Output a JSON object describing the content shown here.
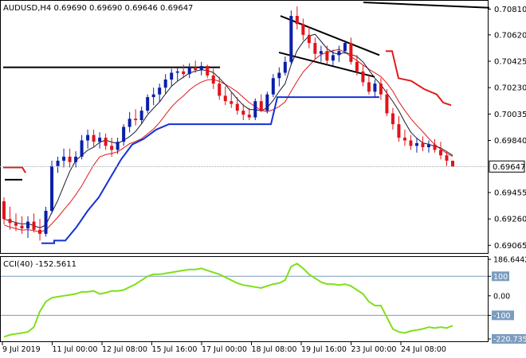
{
  "main_panel": {
    "header": "AUDUSD,H4  0.69690 0.69690 0.69646 0.69647",
    "y_ticks": [
      {
        "label": "0.70810",
        "value": 0.7081
      },
      {
        "label": "0.70620",
        "value": 0.7062
      },
      {
        "label": "0.70425",
        "value": 0.70425
      },
      {
        "label": "0.70230",
        "value": 0.7023
      },
      {
        "label": "0.70035",
        "value": 0.70035
      },
      {
        "label": "0.69840",
        "value": 0.6984
      },
      {
        "label": "0.69455",
        "value": 0.69455
      },
      {
        "label": "0.69260",
        "value": 0.6926
      },
      {
        "label": "0.69065",
        "value": 0.69065
      }
    ],
    "current_price": "0.69647",
    "current_price_value": 0.69647
  },
  "cci_panel": {
    "header": "CCI(40) -152.5611",
    "y_ticks": [
      {
        "label": "186.6442",
        "value": 186.6442
      },
      {
        "label": "100",
        "value": 100,
        "boxed": true
      },
      {
        "label": "0.00",
        "value": 0
      },
      {
        "label": "-100",
        "value": -100,
        "boxed": true
      },
      {
        "label": "-220.735",
        "value": -220.735,
        "boxed": true
      }
    ],
    "levels": [
      100,
      -100
    ]
  },
  "x_axis": {
    "labels": [
      "9 Jul 2019",
      "11 Jul 00:00",
      "12 Jul 08:00",
      "15 Jul 16:00",
      "17 Jul 00:00",
      "18 Jul 08:00",
      "19 Jul 16:00",
      "23 Jul 00:00",
      "24 Jul 08:00"
    ]
  },
  "colors": {
    "bull": "#0a1fa8",
    "bear": "#e0141b",
    "fast_ma": "#1a1a2e",
    "slow_ma": "#e01b1b",
    "blue_level": "#1431d6",
    "red_level": "#e01b1b",
    "cci_line": "#7fe01a",
    "grid_line": "#7a9cc0",
    "axis": "#000000"
  },
  "chart_data": {
    "type": "candlestick",
    "symbol": "AUDUSD",
    "timeframe": "H4",
    "ylim": [
      0.6902,
      0.7086
    ],
    "candles": [
      [
        0.6939,
        0.6942,
        0.6922,
        0.6926
      ],
      [
        0.6926,
        0.6935,
        0.6918,
        0.6923
      ],
      [
        0.6923,
        0.693,
        0.6917,
        0.6921
      ],
      [
        0.6921,
        0.6928,
        0.6915,
        0.6919
      ],
      [
        0.6919,
        0.6928,
        0.6912,
        0.6924
      ],
      [
        0.6924,
        0.693,
        0.6916,
        0.6918
      ],
      [
        0.6918,
        0.6926,
        0.691,
        0.6915
      ],
      [
        0.6915,
        0.6935,
        0.6913,
        0.6932
      ],
      [
        0.6932,
        0.6969,
        0.693,
        0.6965
      ],
      [
        0.6965,
        0.6972,
        0.696,
        0.6969
      ],
      [
        0.6969,
        0.6978,
        0.6964,
        0.6972
      ],
      [
        0.6972,
        0.6978,
        0.6964,
        0.6968
      ],
      [
        0.6968,
        0.6976,
        0.6964,
        0.6972
      ],
      [
        0.6972,
        0.6988,
        0.697,
        0.6984
      ],
      [
        0.6984,
        0.6992,
        0.6978,
        0.6988
      ],
      [
        0.6988,
        0.6992,
        0.6979,
        0.6983
      ],
      [
        0.6983,
        0.699,
        0.6978,
        0.6986
      ],
      [
        0.6986,
        0.6989,
        0.6977,
        0.698
      ],
      [
        0.698,
        0.6986,
        0.6972,
        0.6977
      ],
      [
        0.6977,
        0.6986,
        0.6974,
        0.6983
      ],
      [
        0.6983,
        0.6996,
        0.698,
        0.6994
      ],
      [
        0.6994,
        0.7005,
        0.699,
        0.7
      ],
      [
        0.7,
        0.7007,
        0.6995,
        0.6999
      ],
      [
        0.6999,
        0.7009,
        0.6996,
        0.7006
      ],
      [
        0.7006,
        0.7018,
        0.7004,
        0.7016
      ],
      [
        0.7016,
        0.7023,
        0.701,
        0.7018
      ],
      [
        0.7018,
        0.7026,
        0.7012,
        0.7023
      ],
      [
        0.7023,
        0.7033,
        0.7018,
        0.7029
      ],
      [
        0.7029,
        0.7037,
        0.7024,
        0.7034
      ],
      [
        0.7034,
        0.7038,
        0.7028,
        0.7035
      ],
      [
        0.7035,
        0.704,
        0.703,
        0.7033
      ],
      [
        0.7033,
        0.7041,
        0.703,
        0.7038
      ],
      [
        0.7038,
        0.7043,
        0.7034,
        0.7036
      ],
      [
        0.7036,
        0.7042,
        0.7032,
        0.7039
      ],
      [
        0.7039,
        0.704,
        0.703,
        0.7032
      ],
      [
        0.7032,
        0.7037,
        0.7022,
        0.7026
      ],
      [
        0.7026,
        0.7031,
        0.7014,
        0.7017
      ],
      [
        0.7017,
        0.7024,
        0.701,
        0.7013
      ],
      [
        0.7013,
        0.702,
        0.7008,
        0.7011
      ],
      [
        0.7011,
        0.7016,
        0.7003,
        0.7006
      ],
      [
        0.7006,
        0.7011,
        0.6999,
        0.7003
      ],
      [
        0.7003,
        0.7008,
        0.6999,
        0.7001
      ],
      [
        0.7001,
        0.7015,
        0.6999,
        0.7013
      ],
      [
        0.7013,
        0.7018,
        0.7005,
        0.7006
      ],
      [
        0.7006,
        0.702,
        0.7004,
        0.7018
      ],
      [
        0.7018,
        0.7033,
        0.7016,
        0.703
      ],
      [
        0.703,
        0.7038,
        0.7024,
        0.7034
      ],
      [
        0.7034,
        0.7046,
        0.7032,
        0.7042
      ],
      [
        0.7042,
        0.708,
        0.704,
        0.7076
      ],
      [
        0.7076,
        0.7083,
        0.7066,
        0.707
      ],
      [
        0.707,
        0.7074,
        0.7058,
        0.7062
      ],
      [
        0.7062,
        0.7068,
        0.7052,
        0.7056
      ],
      [
        0.7056,
        0.706,
        0.7044,
        0.7048
      ],
      [
        0.7048,
        0.7054,
        0.7042,
        0.705
      ],
      [
        0.705,
        0.7054,
        0.704,
        0.7043
      ],
      [
        0.7043,
        0.7051,
        0.7039,
        0.7047
      ],
      [
        0.7047,
        0.7054,
        0.7042,
        0.705
      ],
      [
        0.705,
        0.7058,
        0.7048,
        0.7056
      ],
      [
        0.7056,
        0.706,
        0.704,
        0.7042
      ],
      [
        0.7042,
        0.7047,
        0.7032,
        0.7035
      ],
      [
        0.7035,
        0.704,
        0.7024,
        0.7027
      ],
      [
        0.7027,
        0.7032,
        0.7018,
        0.702
      ],
      [
        0.702,
        0.7029,
        0.7016,
        0.7026
      ],
      [
        0.7026,
        0.703,
        0.7014,
        0.7018
      ],
      [
        0.7018,
        0.7022,
        0.7002,
        0.7004
      ],
      [
        0.7004,
        0.7008,
        0.6992,
        0.6996
      ],
      [
        0.6996,
        0.7002,
        0.6983,
        0.6986
      ],
      [
        0.6986,
        0.6992,
        0.698,
        0.6984
      ],
      [
        0.6984,
        0.6988,
        0.6977,
        0.698
      ],
      [
        0.698,
        0.6986,
        0.6975,
        0.6982
      ],
      [
        0.6982,
        0.6987,
        0.6976,
        0.6979
      ],
      [
        0.6979,
        0.6984,
        0.6975,
        0.6981
      ],
      [
        0.6981,
        0.6985,
        0.6975,
        0.6977
      ],
      [
        0.6977,
        0.6983,
        0.697,
        0.6973
      ],
      [
        0.6973,
        0.6976,
        0.6965,
        0.6969
      ],
      [
        0.6969,
        0.6969,
        0.69646,
        0.69647
      ]
    ],
    "cci": [
      -210,
      -200,
      -195,
      -190,
      -185,
      -160,
      -80,
      -30,
      -10,
      -5,
      0,
      5,
      10,
      20,
      20,
      25,
      10,
      15,
      25,
      25,
      30,
      45,
      60,
      80,
      100,
      110,
      110,
      115,
      120,
      125,
      130,
      135,
      135,
      140,
      130,
      120,
      110,
      95,
      80,
      65,
      55,
      50,
      45,
      40,
      50,
      60,
      65,
      80,
      150,
      165,
      140,
      110,
      90,
      70,
      60,
      60,
      55,
      60,
      50,
      30,
      10,
      -30,
      -50,
      -50,
      -110,
      -170,
      -185,
      -190,
      -180,
      -175,
      -170,
      -160,
      -165,
      -160,
      -165,
      -152.5611
    ]
  }
}
